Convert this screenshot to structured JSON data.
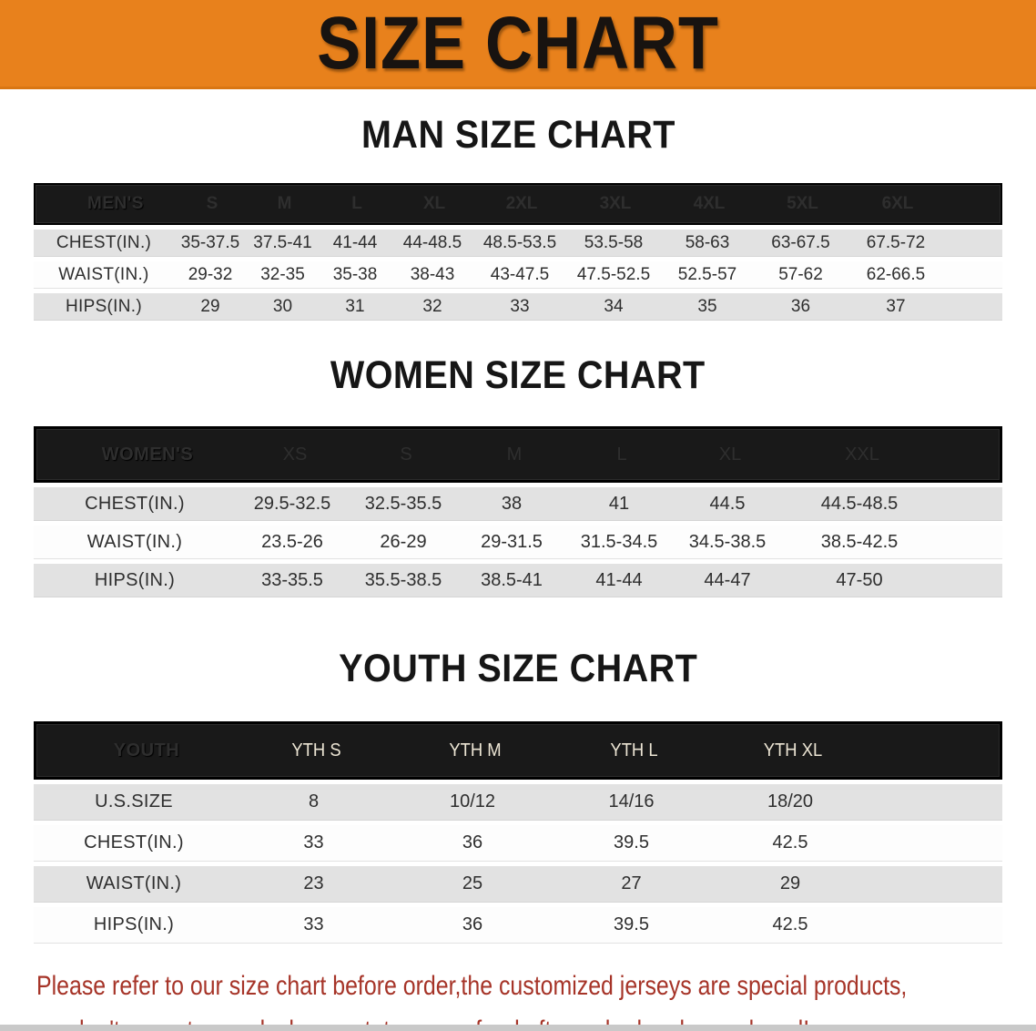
{
  "banner": {
    "title": "SIZE CHART",
    "bg_color": "#e8811c",
    "text_color": "#181310"
  },
  "sections": [
    {
      "title": "MAN SIZE CHART",
      "table": {
        "header_label": "MEN'S",
        "columns": [
          "S",
          "M",
          "L",
          "XL",
          "2XL",
          "3XL",
          "4XL",
          "5XL",
          "6XL"
        ],
        "rows": [
          {
            "label": "CHEST(IN.)",
            "values": [
              "35-37.5",
              "37.5-41",
              "41-44",
              "44-48.5",
              "48.5-53.5",
              "53.5-58",
              "58-63",
              "63-67.5",
              "67.5-72"
            ]
          },
          {
            "label": "WAIST(IN.)",
            "values": [
              "29-32",
              "32-35",
              "35-38",
              "38-43",
              "43-47.5",
              "47.5-52.5",
              "52.5-57",
              "57-62",
              "62-66.5"
            ]
          },
          {
            "label": "HIPS(IN.)",
            "values": [
              "29",
              "30",
              "31",
              "32",
              "33",
              "34",
              "35",
              "36",
              "37"
            ]
          }
        ]
      }
    },
    {
      "title": "WOMEN SIZE CHART",
      "table": {
        "header_label": "WOMEN'S",
        "columns": [
          "XS",
          "S",
          "M",
          "L",
          "XL",
          "XXL"
        ],
        "rows": [
          {
            "label": "CHEST(IN.)",
            "values": [
              "29.5-32.5",
              "32.5-35.5",
              "38",
              "41",
              "44.5",
              "44.5-48.5"
            ]
          },
          {
            "label": "WAIST(IN.)",
            "values": [
              "23.5-26",
              "26-29",
              "29-31.5",
              "31.5-34.5",
              "34.5-38.5",
              "38.5-42.5"
            ]
          },
          {
            "label": "HIPS(IN.)",
            "values": [
              "33-35.5",
              "35.5-38.5",
              "38.5-41",
              "41-44",
              "44-47",
              "47-50"
            ]
          }
        ]
      }
    },
    {
      "title": "YOUTH SIZE CHART",
      "table": {
        "header_label": "YOUTH",
        "columns": [
          "YTH S",
          "YTH M",
          "YTH L",
          "YTH XL"
        ],
        "rows": [
          {
            "label": "U.S.SIZE",
            "values": [
              "8",
              "10/12",
              "14/16",
              "18/20"
            ]
          },
          {
            "label": "CHEST(IN.)",
            "values": [
              "33",
              "36",
              "39.5",
              "42.5"
            ]
          },
          {
            "label": "WAIST(IN.)",
            "values": [
              "23",
              "25",
              "27",
              "29"
            ]
          },
          {
            "label": "HIPS(IN.)",
            "values": [
              "33",
              "36",
              "39.5",
              "42.5"
            ]
          }
        ]
      }
    }
  ],
  "disclaimer": {
    "line1": "Please refer to our size chart before order,the customized jerseys are special products,",
    "line2": "we don't accept cancel, change, teturn or refund after order has been placed!",
    "text_color": "#a63428"
  }
}
